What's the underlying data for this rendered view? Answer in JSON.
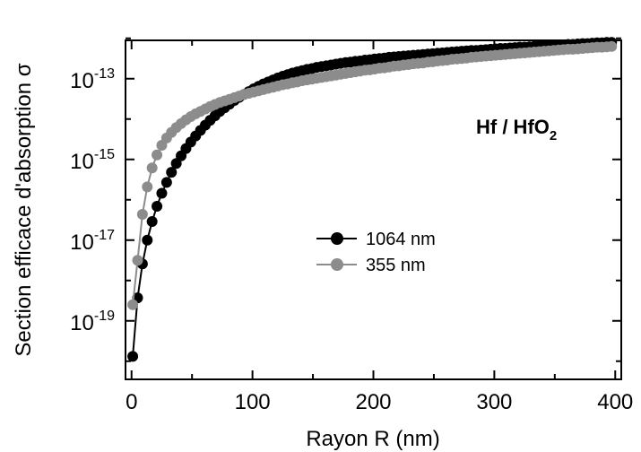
{
  "chart_data": {
    "type": "scatter",
    "title": "",
    "xlabel": "Rayon R (nm)",
    "ylabel": "Section efficace d'absorption σ",
    "annotation": {
      "main": "Hf / HfO",
      "subscript": "2"
    },
    "y_scale": "log",
    "xlim": [
      -5,
      405
    ],
    "ylim_exp": [
      -20.45,
      -12.05
    ],
    "x_ticks": [
      0,
      100,
      200,
      300,
      400
    ],
    "x_tick_labels": [
      "0",
      "100",
      "200",
      "300",
      "400"
    ],
    "y_tick_exps": [
      -19,
      -17,
      -15,
      -13
    ],
    "y_tick_labels": [
      {
        "base": "10",
        "exp": "-19"
      },
      {
        "base": "10",
        "exp": "-17"
      },
      {
        "base": "10",
        "exp": "-15"
      },
      {
        "base": "10",
        "exp": "-13"
      }
    ],
    "legend_position": "center",
    "series": [
      {
        "name": "1064 nm",
        "color": "#000000",
        "x": [
          1,
          5,
          9,
          13,
          17,
          21,
          25,
          29,
          33,
          37,
          41,
          45,
          49,
          53,
          57,
          61,
          65,
          69,
          73,
          77,
          81,
          85,
          89,
          93,
          97,
          101,
          105,
          109,
          113,
          117,
          121,
          125,
          129,
          133,
          137,
          141,
          145,
          149,
          153,
          157,
          161,
          165,
          169,
          173,
          177,
          181,
          185,
          189,
          193,
          197,
          201,
          205,
          209,
          213,
          217,
          221,
          225,
          229,
          233,
          237,
          241,
          245,
          249,
          253,
          257,
          261,
          265,
          269,
          273,
          277,
          281,
          285,
          289,
          293,
          297,
          301,
          305,
          309,
          313,
          317,
          321,
          325,
          329,
          333,
          337,
          341,
          345,
          349,
          353,
          357,
          361,
          365,
          369,
          373,
          377,
          381,
          385,
          389,
          393,
          397
        ],
        "y_exp": [
          -19.88,
          -18.43,
          -17.59,
          -17.0,
          -16.54,
          -16.16,
          -15.84,
          -15.57,
          -15.32,
          -15.1,
          -14.91,
          -14.73,
          -14.57,
          -14.42,
          -14.28,
          -14.15,
          -14.03,
          -13.92,
          -13.81,
          -13.72,
          -13.63,
          -13.54,
          -13.46,
          -13.39,
          -13.32,
          -13.25,
          -13.19,
          -13.13,
          -13.08,
          -13.03,
          -12.98,
          -12.94,
          -12.9,
          -12.86,
          -12.83,
          -12.8,
          -12.77,
          -12.75,
          -12.72,
          -12.7,
          -12.68,
          -12.66,
          -12.64,
          -12.62,
          -12.6,
          -12.59,
          -12.57,
          -12.56,
          -12.54,
          -12.53,
          -12.51,
          -12.5,
          -12.49,
          -12.47,
          -12.46,
          -12.45,
          -12.44,
          -12.43,
          -12.42,
          -12.41,
          -12.4,
          -12.39,
          -12.38,
          -12.37,
          -12.36,
          -12.35,
          -12.34,
          -12.33,
          -12.32,
          -12.31,
          -12.3,
          -12.3,
          -12.29,
          -12.28,
          -12.27,
          -12.26,
          -12.25,
          -12.25,
          -12.24,
          -12.23,
          -12.22,
          -12.22,
          -12.21,
          -12.2,
          -12.19,
          -12.19,
          -12.18,
          -12.17,
          -12.17,
          -12.16,
          -12.15,
          -12.15,
          -12.14,
          -12.13,
          -12.13,
          -12.12,
          -12.11,
          -12.11,
          -12.1,
          -12.1
        ]
      },
      {
        "name": "355 nm",
        "color": "#8c8c8c",
        "x": [
          1,
          5,
          9,
          13,
          17,
          21,
          25,
          29,
          33,
          37,
          41,
          45,
          49,
          53,
          57,
          61,
          65,
          69,
          73,
          77,
          81,
          85,
          89,
          93,
          97,
          101,
          105,
          109,
          113,
          117,
          121,
          125,
          129,
          133,
          137,
          141,
          145,
          149,
          153,
          157,
          161,
          165,
          169,
          173,
          177,
          181,
          185,
          189,
          193,
          197,
          201,
          205,
          209,
          213,
          217,
          221,
          225,
          229,
          233,
          237,
          241,
          245,
          249,
          253,
          257,
          261,
          265,
          269,
          273,
          277,
          281,
          285,
          289,
          293,
          297,
          301,
          305,
          309,
          313,
          317,
          321,
          325,
          329,
          333,
          337,
          341,
          345,
          349,
          353,
          357,
          361,
          365,
          369,
          373,
          377,
          381,
          385,
          389,
          393,
          397
        ],
        "y_exp": [
          -18.6,
          -17.5,
          -16.36,
          -15.68,
          -15.21,
          -14.89,
          -14.65,
          -14.47,
          -14.33,
          -14.21,
          -14.11,
          -14.02,
          -13.94,
          -13.87,
          -13.81,
          -13.75,
          -13.69,
          -13.64,
          -13.59,
          -13.55,
          -13.51,
          -13.47,
          -13.43,
          -13.39,
          -13.36,
          -13.33,
          -13.3,
          -13.27,
          -13.24,
          -13.21,
          -13.18,
          -13.15,
          -13.13,
          -13.1,
          -13.08,
          -13.05,
          -13.03,
          -13.01,
          -12.99,
          -12.97,
          -12.95,
          -12.93,
          -12.91,
          -12.89,
          -12.87,
          -12.85,
          -12.83,
          -12.81,
          -12.79,
          -12.78,
          -12.76,
          -12.74,
          -12.73,
          -12.71,
          -12.69,
          -12.68,
          -12.66,
          -12.65,
          -12.63,
          -12.62,
          -12.61,
          -12.59,
          -12.58,
          -12.56,
          -12.55,
          -12.54,
          -12.52,
          -12.51,
          -12.5,
          -12.49,
          -12.47,
          -12.46,
          -12.45,
          -12.44,
          -12.43,
          -12.42,
          -12.41,
          -12.4,
          -12.39,
          -12.38,
          -12.37,
          -12.36,
          -12.35,
          -12.34,
          -12.33,
          -12.32,
          -12.31,
          -12.3,
          -12.29,
          -12.28,
          -12.27,
          -12.27,
          -12.26,
          -12.25,
          -12.24,
          -12.23,
          -12.22,
          -12.22,
          -12.21,
          -12.2
        ]
      }
    ]
  }
}
